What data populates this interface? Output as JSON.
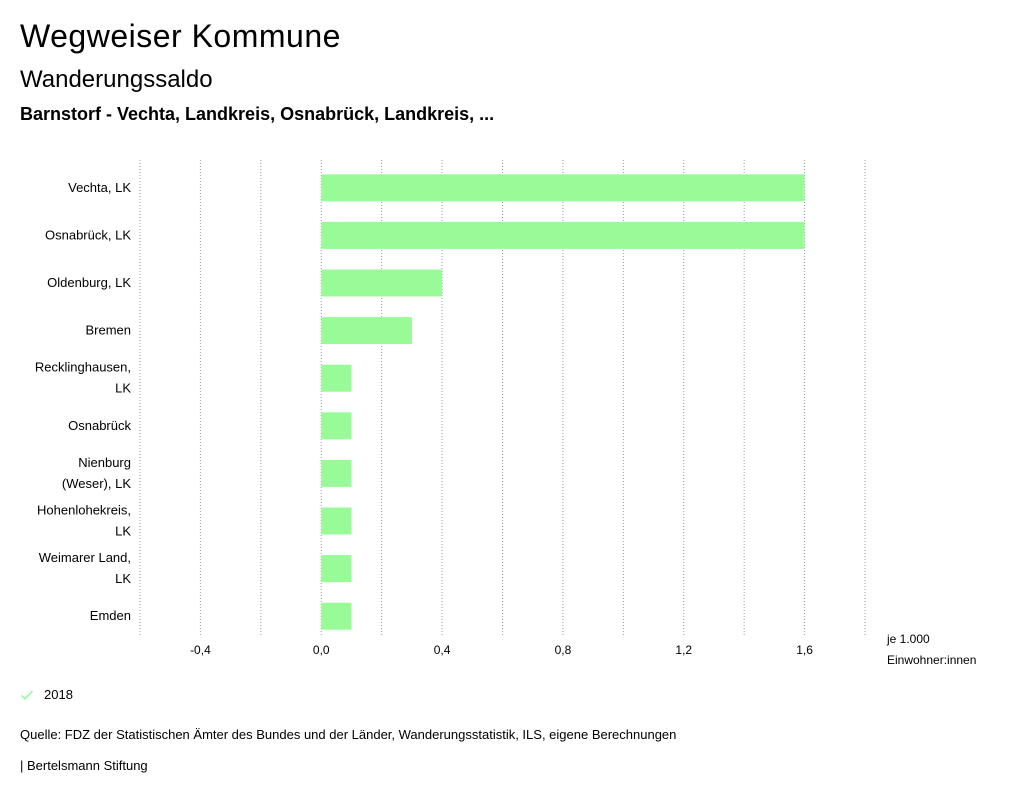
{
  "header": {
    "title": "Wegweiser Kommune",
    "subtitle": "Wanderungssaldo",
    "region": "Barnstorf - Vechta, Landkreis, Osnabrück, Landkreis, ..."
  },
  "chart_data": {
    "type": "bar",
    "orientation": "horizontal",
    "categories": [
      [
        "Vechta, LK"
      ],
      [
        "Osnabrück, LK"
      ],
      [
        "Oldenburg, LK"
      ],
      [
        "Bremen"
      ],
      [
        "Recklinghausen,",
        "LK"
      ],
      [
        "Osnabrück"
      ],
      [
        "Nienburg",
        "(Weser), LK"
      ],
      [
        "Hohenlohekreis,",
        "LK"
      ],
      [
        "Weimarer Land,",
        "LK"
      ],
      [
        "Emden"
      ]
    ],
    "series": [
      {
        "name": "2018",
        "color": "#98fb98",
        "values": [
          1.6,
          1.6,
          0.4,
          0.3,
          0.1,
          0.1,
          0.1,
          0.1,
          0.1,
          0.1
        ]
      }
    ],
    "xlim": [
      -0.6,
      1.8
    ],
    "ticks": [
      -0.4,
      0.0,
      0.4,
      0.8,
      1.2,
      1.6
    ],
    "tick_labels": [
      "-0,4",
      "0,0",
      "0,4",
      "0,8",
      "1,2",
      "1,6"
    ],
    "gridlines": [
      -0.6,
      -0.4,
      -0.2,
      0.0,
      0.2,
      0.4,
      0.6,
      0.8,
      1.0,
      1.2,
      1.4,
      1.6,
      1.8
    ],
    "unit_label": [
      "je 1.000",
      "Einwohner:innen"
    ]
  },
  "legend": {
    "label": "2018",
    "color": "#98fb98"
  },
  "source": "Quelle: FDZ der Statistischen Ämter des Bundes und der Länder, Wanderungsstatistik, ILS, eigene Berechnungen",
  "footer": "| Bertelsmann Stiftung"
}
